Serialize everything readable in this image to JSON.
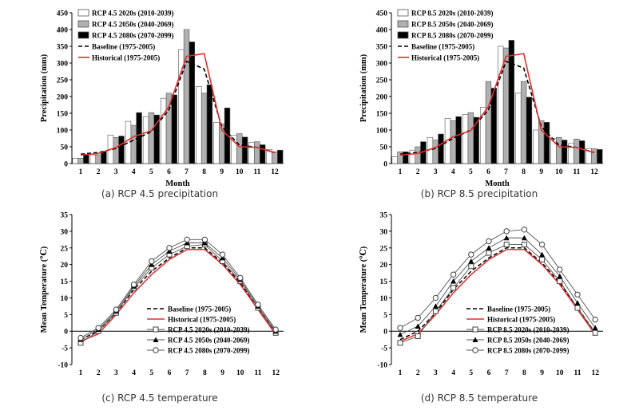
{
  "chart_data": [
    {
      "id": "a",
      "type": "bar+line",
      "caption": "(a) RCP 4.5 precipitation",
      "xlabel": "Month",
      "ylabel": "Precipitation  (mm)",
      "ylim": [
        0,
        450
      ],
      "yticks": [
        0,
        50,
        100,
        150,
        200,
        250,
        300,
        350,
        400,
        450
      ],
      "categories": [
        "1",
        "2",
        "3",
        "4",
        "5",
        "6",
        "7",
        "8",
        "9",
        "10",
        "11",
        "12"
      ],
      "bars": [
        {
          "name": "RCP 4.5 2020s (2010-2039)",
          "fill": "#ffffff",
          "values": [
            16,
            26,
            85,
            126,
            140,
            195,
            340,
            230,
            123,
            84,
            63,
            42
          ]
        },
        {
          "name": "RCP 4.5 2050s (2040-2069)",
          "fill": "#b0b0b0",
          "values": [
            16,
            26,
            78,
            114,
            152,
            210,
            400,
            210,
            118,
            89,
            65,
            35
          ]
        },
        {
          "name": "RCP 4.5 2080s (2070-2099)",
          "fill": "#000000",
          "values": [
            28,
            36,
            82,
            152,
            145,
            205,
            363,
            235,
            166,
            79,
            56,
            40
          ]
        }
      ],
      "lines": [
        {
          "name": "Baseline (1975-2005)",
          "color": "#000000",
          "dash": "5,3",
          "values": [
            28,
            33,
            45,
            70,
            95,
            160,
            305,
            282,
            110,
            55,
            48,
            33
          ]
        },
        {
          "name": "Historical (1975-2005)",
          "color": "#e03030",
          "dash": "",
          "values": [
            25,
            30,
            48,
            80,
            98,
            170,
            320,
            328,
            100,
            50,
            48,
            32
          ]
        }
      ]
    },
    {
      "id": "b",
      "type": "bar+line",
      "caption": "(b) RCP 8.5 precipitation",
      "xlabel": "Month",
      "ylabel": "Precipitation  (mm)",
      "ylim": [
        0,
        450
      ],
      "yticks": [
        0,
        50,
        100,
        150,
        200,
        250,
        300,
        350,
        400,
        450
      ],
      "categories": [
        "1",
        "2",
        "3",
        "4",
        "5",
        "6",
        "7",
        "8",
        "9",
        "10",
        "11",
        "12"
      ],
      "bars": [
        {
          "name": "RCP 8.5 2020s (2010-2039)",
          "fill": "#ffffff",
          "values": [
            20,
            40,
            78,
            135,
            147,
            168,
            350,
            210,
            100,
            75,
            60,
            45
          ]
        },
        {
          "name": "RCP 8.5 2050s (2040-2069)",
          "fill": "#b0b0b0",
          "values": [
            35,
            50,
            70,
            128,
            152,
            245,
            345,
            245,
            128,
            78,
            73,
            44
          ]
        },
        {
          "name": "RCP 8.5 2080s (2070-2099)",
          "fill": "#000000",
          "values": [
            35,
            65,
            88,
            140,
            138,
            225,
            368,
            198,
            123,
            70,
            68,
            42
          ]
        }
      ],
      "lines": [
        {
          "name": "Baseline (1975-2005)",
          "color": "#000000",
          "dash": "5,3",
          "values": [
            28,
            33,
            45,
            75,
            100,
            160,
            305,
            285,
            110,
            55,
            48,
            33
          ]
        },
        {
          "name": "Historical (1975-2005)",
          "color": "#e03030",
          "dash": "",
          "values": [
            25,
            30,
            48,
            80,
            98,
            170,
            320,
            328,
            100,
            50,
            48,
            32
          ]
        }
      ]
    },
    {
      "id": "c",
      "type": "line",
      "caption": "(c) RCP 4.5 temperature",
      "xlabel": "",
      "ylabel": "Mean Temperature  (℃)",
      "ylim": [
        -10,
        35
      ],
      "yticks": [
        -10,
        -5,
        0,
        5,
        10,
        15,
        20,
        25,
        30,
        35
      ],
      "categories": [
        "1",
        "2",
        "3",
        "4",
        "5",
        "6",
        "7",
        "8",
        "9",
        "10",
        "11",
        "12"
      ],
      "series": [
        {
          "name": "Baseline (1975-2005)",
          "color": "#000000",
          "dash": "5,3",
          "marker": "none",
          "values": [
            -2.5,
            0.0,
            5.5,
            12.5,
            18.0,
            22.0,
            25.0,
            25.0,
            20.5,
            14.5,
            7.0,
            -0.5
          ]
        },
        {
          "name": "Historical (1975-2005)",
          "color": "#e03030",
          "dash": "",
          "marker": "none",
          "values": [
            -3.0,
            -0.8,
            5.0,
            11.5,
            17.0,
            21.5,
            24.5,
            24.5,
            20.0,
            14.0,
            6.5,
            -1.0
          ]
        },
        {
          "name": "RCP 4.5 2020s (2010-2039)",
          "color": "#555555",
          "dash": "",
          "marker": "square",
          "values": [
            -3.5,
            0.0,
            5.5,
            13.0,
            19.0,
            23.0,
            25.5,
            26.0,
            21.0,
            15.0,
            7.0,
            -0.5
          ]
        },
        {
          "name": "RCP 4.5 2050s (2040-2069)",
          "color": "#555555",
          "dash": "",
          "marker": "triangle",
          "values": [
            -2.5,
            0.5,
            6.0,
            13.5,
            20.0,
            24.0,
            26.5,
            26.5,
            22.0,
            15.5,
            7.5,
            0.0
          ]
        },
        {
          "name": "RCP 4.5 2080s (2070-2099)",
          "color": "#555555",
          "dash": "",
          "marker": "circle",
          "values": [
            -2.0,
            1.0,
            6.5,
            14.0,
            21.0,
            25.0,
            27.5,
            27.5,
            23.0,
            16.0,
            8.0,
            0.5
          ]
        }
      ]
    },
    {
      "id": "d",
      "type": "line",
      "caption": "(d) RCP 8.5 temperature",
      "xlabel": "",
      "ylabel": "Mean Temperature  (℃)",
      "ylim": [
        -10,
        35
      ],
      "yticks": [
        -10,
        -5,
        0,
        5,
        10,
        15,
        20,
        25,
        30,
        35
      ],
      "categories": [
        "1",
        "2",
        "3",
        "4",
        "5",
        "6",
        "7",
        "8",
        "9",
        "10",
        "11",
        "12"
      ],
      "series": [
        {
          "name": "Baseline (1975-2005)",
          "color": "#000000",
          "dash": "5,3",
          "marker": "none",
          "values": [
            -2.5,
            0.0,
            5.5,
            12.5,
            18.0,
            22.0,
            25.0,
            25.0,
            20.5,
            14.5,
            7.0,
            -0.5
          ]
        },
        {
          "name": "Historical (1975-2005)",
          "color": "#e03030",
          "dash": "",
          "marker": "none",
          "values": [
            -3.0,
            -0.8,
            5.0,
            11.5,
            17.0,
            21.5,
            24.5,
            24.5,
            20.0,
            14.0,
            6.5,
            -1.0
          ]
        },
        {
          "name": "RCP 8.5 2020s (2010-2039)",
          "color": "#555555",
          "dash": "",
          "marker": "square",
          "values": [
            -3.5,
            -1.5,
            6.0,
            13.0,
            19.5,
            23.5,
            26.0,
            26.0,
            21.5,
            15.0,
            7.0,
            -0.5
          ]
        },
        {
          "name": "RCP 8.5 2050s (2040-2069)",
          "color": "#555555",
          "dash": "",
          "marker": "triangle",
          "values": [
            -1.0,
            1.5,
            7.5,
            15.0,
            21.0,
            25.0,
            28.0,
            28.0,
            23.0,
            16.5,
            8.5,
            1.0
          ]
        },
        {
          "name": "RCP 8.5 2080s (2070-2099)",
          "color": "#555555",
          "dash": "",
          "marker": "circle",
          "values": [
            1.0,
            4.0,
            10.0,
            17.0,
            23.0,
            27.0,
            30.0,
            30.5,
            26.0,
            18.5,
            11.0,
            3.5
          ]
        }
      ]
    }
  ]
}
